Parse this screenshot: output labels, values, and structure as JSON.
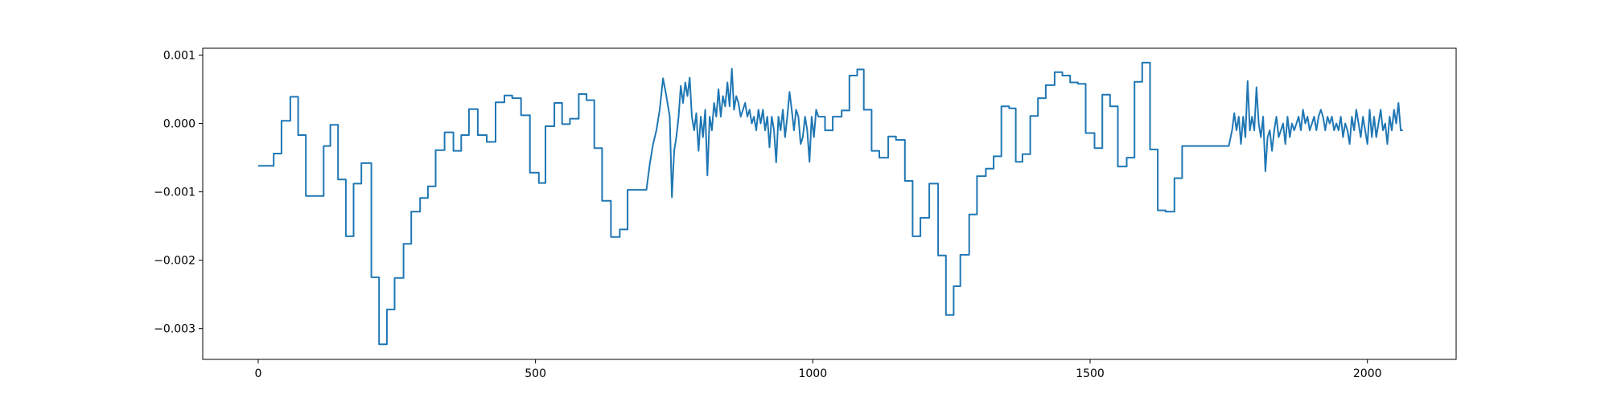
{
  "chart_data": {
    "type": "line",
    "title": "",
    "xlabel": "",
    "ylabel": "",
    "xlim": [
      -100,
      2160
    ],
    "ylim": [
      -0.00345,
      0.0011
    ],
    "grid": false,
    "legend": "none",
    "colors": {
      "line": "#1f77b4",
      "axes": "#000000",
      "background": "#ffffff"
    },
    "xticks": [
      0,
      500,
      1000,
      1500,
      2000
    ],
    "xtick_labels": [
      "0",
      "500",
      "1000",
      "1500",
      "2000"
    ],
    "yticks": [
      0.001,
      0.0,
      -0.001,
      -0.002,
      -0.003
    ],
    "ytick_labels": [
      "0.001",
      "0.000",
      "−0.001",
      "−0.002",
      "−0.003"
    ],
    "series": [
      {
        "style": "step",
        "x": [
          0,
          14,
          28,
          42,
          58,
          72,
          86,
          104,
          118,
          130,
          144,
          158,
          172,
          186,
          204,
          218,
          232,
          246,
          262,
          276,
          292,
          306,
          320,
          336,
          352,
          366,
          380,
          396,
          412,
          428,
          444,
          458,
          474,
          490,
          506,
          518,
          534,
          548,
          562,
          578,
          592,
          606,
          620,
          636,
          652,
          666,
          680,
          696
        ],
        "y": [
          -0.00062,
          -0.00062,
          -0.00044,
          4e-05,
          0.00039,
          -0.00017,
          -0.00106,
          -0.00106,
          -0.00033,
          -2e-05,
          -0.00082,
          -0.00165,
          -0.00088,
          -0.00058,
          -0.00225,
          -0.00323,
          -0.00272,
          -0.00226,
          -0.00176,
          -0.00129,
          -0.00109,
          -0.00092,
          -0.00039,
          -0.00013,
          -0.0004,
          -0.00017,
          0.00021,
          -0.00017,
          -0.00027,
          0.00031,
          0.00041,
          0.00037,
          0.00012,
          -0.00072,
          -0.00087,
          -4e-05,
          0.0003,
          -1e-05,
          7e-05,
          0.00043,
          0.00034,
          -0.00036,
          -0.00113,
          -0.00166,
          -0.00155,
          -0.00097,
          -0.00097,
          -0.00097
        ]
      },
      {
        "style": "line",
        "x": [
          700,
          706,
          712,
          718,
          724,
          730,
          736,
          742,
          746,
          750,
          754,
          758,
          762,
          766,
          770,
          774,
          778,
          782,
          786,
          790,
          794,
          798,
          802,
          806,
          810,
          814,
          818,
          822,
          826,
          830,
          834,
          838,
          842,
          846,
          850,
          854,
          858,
          862,
          866,
          870,
          874,
          878,
          882,
          886,
          890,
          894,
          898,
          902,
          906,
          910,
          914,
          918,
          922,
          926,
          930,
          934,
          938,
          942,
          946,
          950,
          954,
          958,
          962,
          966,
          970,
          974,
          978,
          982,
          986,
          990,
          994,
          998,
          1002,
          1006,
          1010
        ],
        "y": [
          -0.00097,
          -0.0006,
          -0.0003,
          -0.0001,
          0.0002,
          0.00066,
          0.0004,
          0.0001,
          -0.00108,
          -0.0004,
          -0.0002,
          0.0001,
          0.00055,
          0.0003,
          0.0006,
          0.0004,
          0.00067,
          0.0001,
          -0.0001,
          0.00015,
          -0.0004,
          0.0001,
          -0.0002,
          0.0002,
          -0.00076,
          0.0001,
          -0.0001,
          0.0003,
          0.0001,
          0.0005,
          0.0001,
          0.0004,
          0.00025,
          0.0006,
          0.00025,
          0.0008,
          0.0002,
          0.0004,
          0.0003,
          0.0001,
          0.0002,
          0.0003,
          0.0001,
          0.0002,
          0.0,
          0.0001,
          -0.0001,
          0.0002,
          0.0,
          0.0002,
          -0.0001,
          0.0001,
          -0.00035,
          0.0001,
          -0.0001,
          -0.00057,
          0.0001,
          -0.0001,
          0.0002,
          -0.0002,
          0.0001,
          0.00046,
          0.0002,
          -0.0001,
          0.0002,
          0.0001,
          -0.0003,
          -0.0002,
          0.0001,
          -0.0001,
          -0.00056,
          0.0001,
          -0.0002,
          0.0002,
          0.0001
        ]
      },
      {
        "style": "step",
        "x": [
          1010,
          1022,
          1036,
          1052,
          1066,
          1080,
          1092,
          1106,
          1120,
          1136,
          1150,
          1166,
          1180,
          1194,
          1210,
          1226,
          1240,
          1254,
          1266,
          1282,
          1296,
          1312,
          1326,
          1340,
          1354,
          1366,
          1378,
          1392,
          1406,
          1420,
          1436,
          1450,
          1464,
          1478,
          1492,
          1508,
          1522,
          1536,
          1550,
          1566,
          1580,
          1594,
          1608,
          1622,
          1636,
          1652,
          1666,
          1680,
          1696,
          1710,
          1726,
          1740,
          1750
        ],
        "y": [
          0.0001,
          -0.0001,
          0.0001,
          0.00019,
          0.0007,
          0.00079,
          0.0002,
          -0.0004,
          -0.0005,
          -0.00019,
          -0.00024,
          -0.00084,
          -0.00165,
          -0.00138,
          -0.00088,
          -0.00193,
          -0.0028,
          -0.00238,
          -0.00192,
          -0.00133,
          -0.00077,
          -0.00066,
          -0.00048,
          0.00025,
          0.00022,
          -0.00056,
          -0.00045,
          0.00011,
          0.00037,
          0.00056,
          0.00075,
          0.0007,
          0.0006,
          0.00058,
          -0.00014,
          -0.00036,
          0.00042,
          0.00025,
          -0.00063,
          -0.0005,
          0.00061,
          0.00089,
          -0.00038,
          -0.00127,
          -0.00129,
          -0.0008,
          -0.00033,
          -0.00033,
          -0.00033,
          -0.00033,
          -0.00033,
          -0.00033,
          -0.00033
        ]
      },
      {
        "style": "line",
        "x": [
          1750,
          1756,
          1760,
          1764,
          1768,
          1772,
          1776,
          1780,
          1784,
          1788,
          1792,
          1796,
          1800,
          1804,
          1808,
          1812,
          1816,
          1820,
          1824,
          1828,
          1832,
          1836,
          1840,
          1844,
          1848,
          1852,
          1856,
          1860,
          1864,
          1868,
          1872,
          1876,
          1880,
          1884,
          1888,
          1892,
          1896,
          1900,
          1904,
          1908,
          1912,
          1916,
          1920,
          1924,
          1928,
          1932,
          1936,
          1940,
          1944,
          1948,
          1952,
          1956,
          1960,
          1964,
          1968,
          1972,
          1976,
          1980,
          1984,
          1988,
          1992,
          1996,
          2000,
          2004,
          2008,
          2012,
          2016,
          2020,
          2024,
          2028,
          2032,
          2036,
          2040,
          2044,
          2048,
          2052,
          2056,
          2060,
          2064
        ],
        "y": [
          -0.00033,
          -0.0001,
          0.00015,
          -0.0001,
          0.0001,
          -0.0003,
          0.0001,
          -0.0002,
          0.00062,
          -0.0001,
          0.0001,
          -0.0001,
          0.00053,
          0.0,
          -0.0002,
          0.0001,
          -0.0007,
          -0.0002,
          -0.0001,
          -0.0004,
          -0.0001,
          0.0001,
          -0.0002,
          -0.0001,
          0.0,
          -0.0003,
          0.0001,
          -0.0002,
          0.0,
          -0.0001,
          0.0,
          0.0001,
          -0.0001,
          0.0002,
          0.0,
          0.0001,
          -0.0001,
          0.0,
          0.0001,
          -0.0001,
          0.0001,
          0.0002,
          0.0001,
          -0.0001,
          0.0001,
          0.0,
          0.0001,
          -0.0001,
          0.0,
          -0.0001,
          0.0001,
          -0.0002,
          0.0,
          -0.0001,
          -0.0003,
          0.0001,
          -0.0001,
          0.0002,
          0.0,
          -0.0002,
          0.0001,
          -0.0001,
          -0.0003,
          0.0002,
          -0.0002,
          0.0001,
          -0.0002,
          0.0,
          0.0002,
          -0.0001,
          0.0,
          -0.0003,
          0.0001,
          -0.0001,
          0.0002,
          0.0,
          0.0003,
          -0.0001,
          -0.0001
        ]
      }
    ]
  }
}
